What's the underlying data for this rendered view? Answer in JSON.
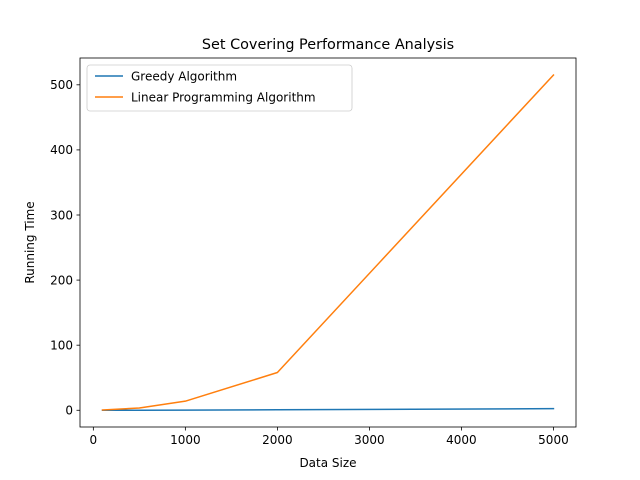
{
  "chart_data": {
    "type": "line",
    "title": "Set Covering Performance Analysis",
    "xlabel": "Data Size",
    "ylabel": "Running Time",
    "x": [
      100,
      500,
      1000,
      2000,
      5000
    ],
    "series": [
      {
        "name": "Greedy Algorithm",
        "color": "#1f77b4",
        "values": [
          0.02,
          0.1,
          0.3,
          0.8,
          2.5
        ]
      },
      {
        "name": "Linear Programming Algorithm",
        "color": "#ff7f0e",
        "values": [
          0.5,
          3.5,
          14,
          58,
          515
        ]
      }
    ],
    "xlim": [
      -145,
      5245
    ],
    "ylim": [
      -25.7,
      541.2
    ],
    "xticks": [
      0,
      1000,
      2000,
      3000,
      4000,
      5000
    ],
    "xtick_labels": [
      "0",
      "1000",
      "2000",
      "3000",
      "4000",
      "5000"
    ],
    "yticks": [
      0,
      100,
      200,
      300,
      400,
      500
    ],
    "ytick_labels": [
      "0",
      "100",
      "200",
      "300",
      "400",
      "500"
    ],
    "grid": false,
    "legend_position": "top-left"
  }
}
